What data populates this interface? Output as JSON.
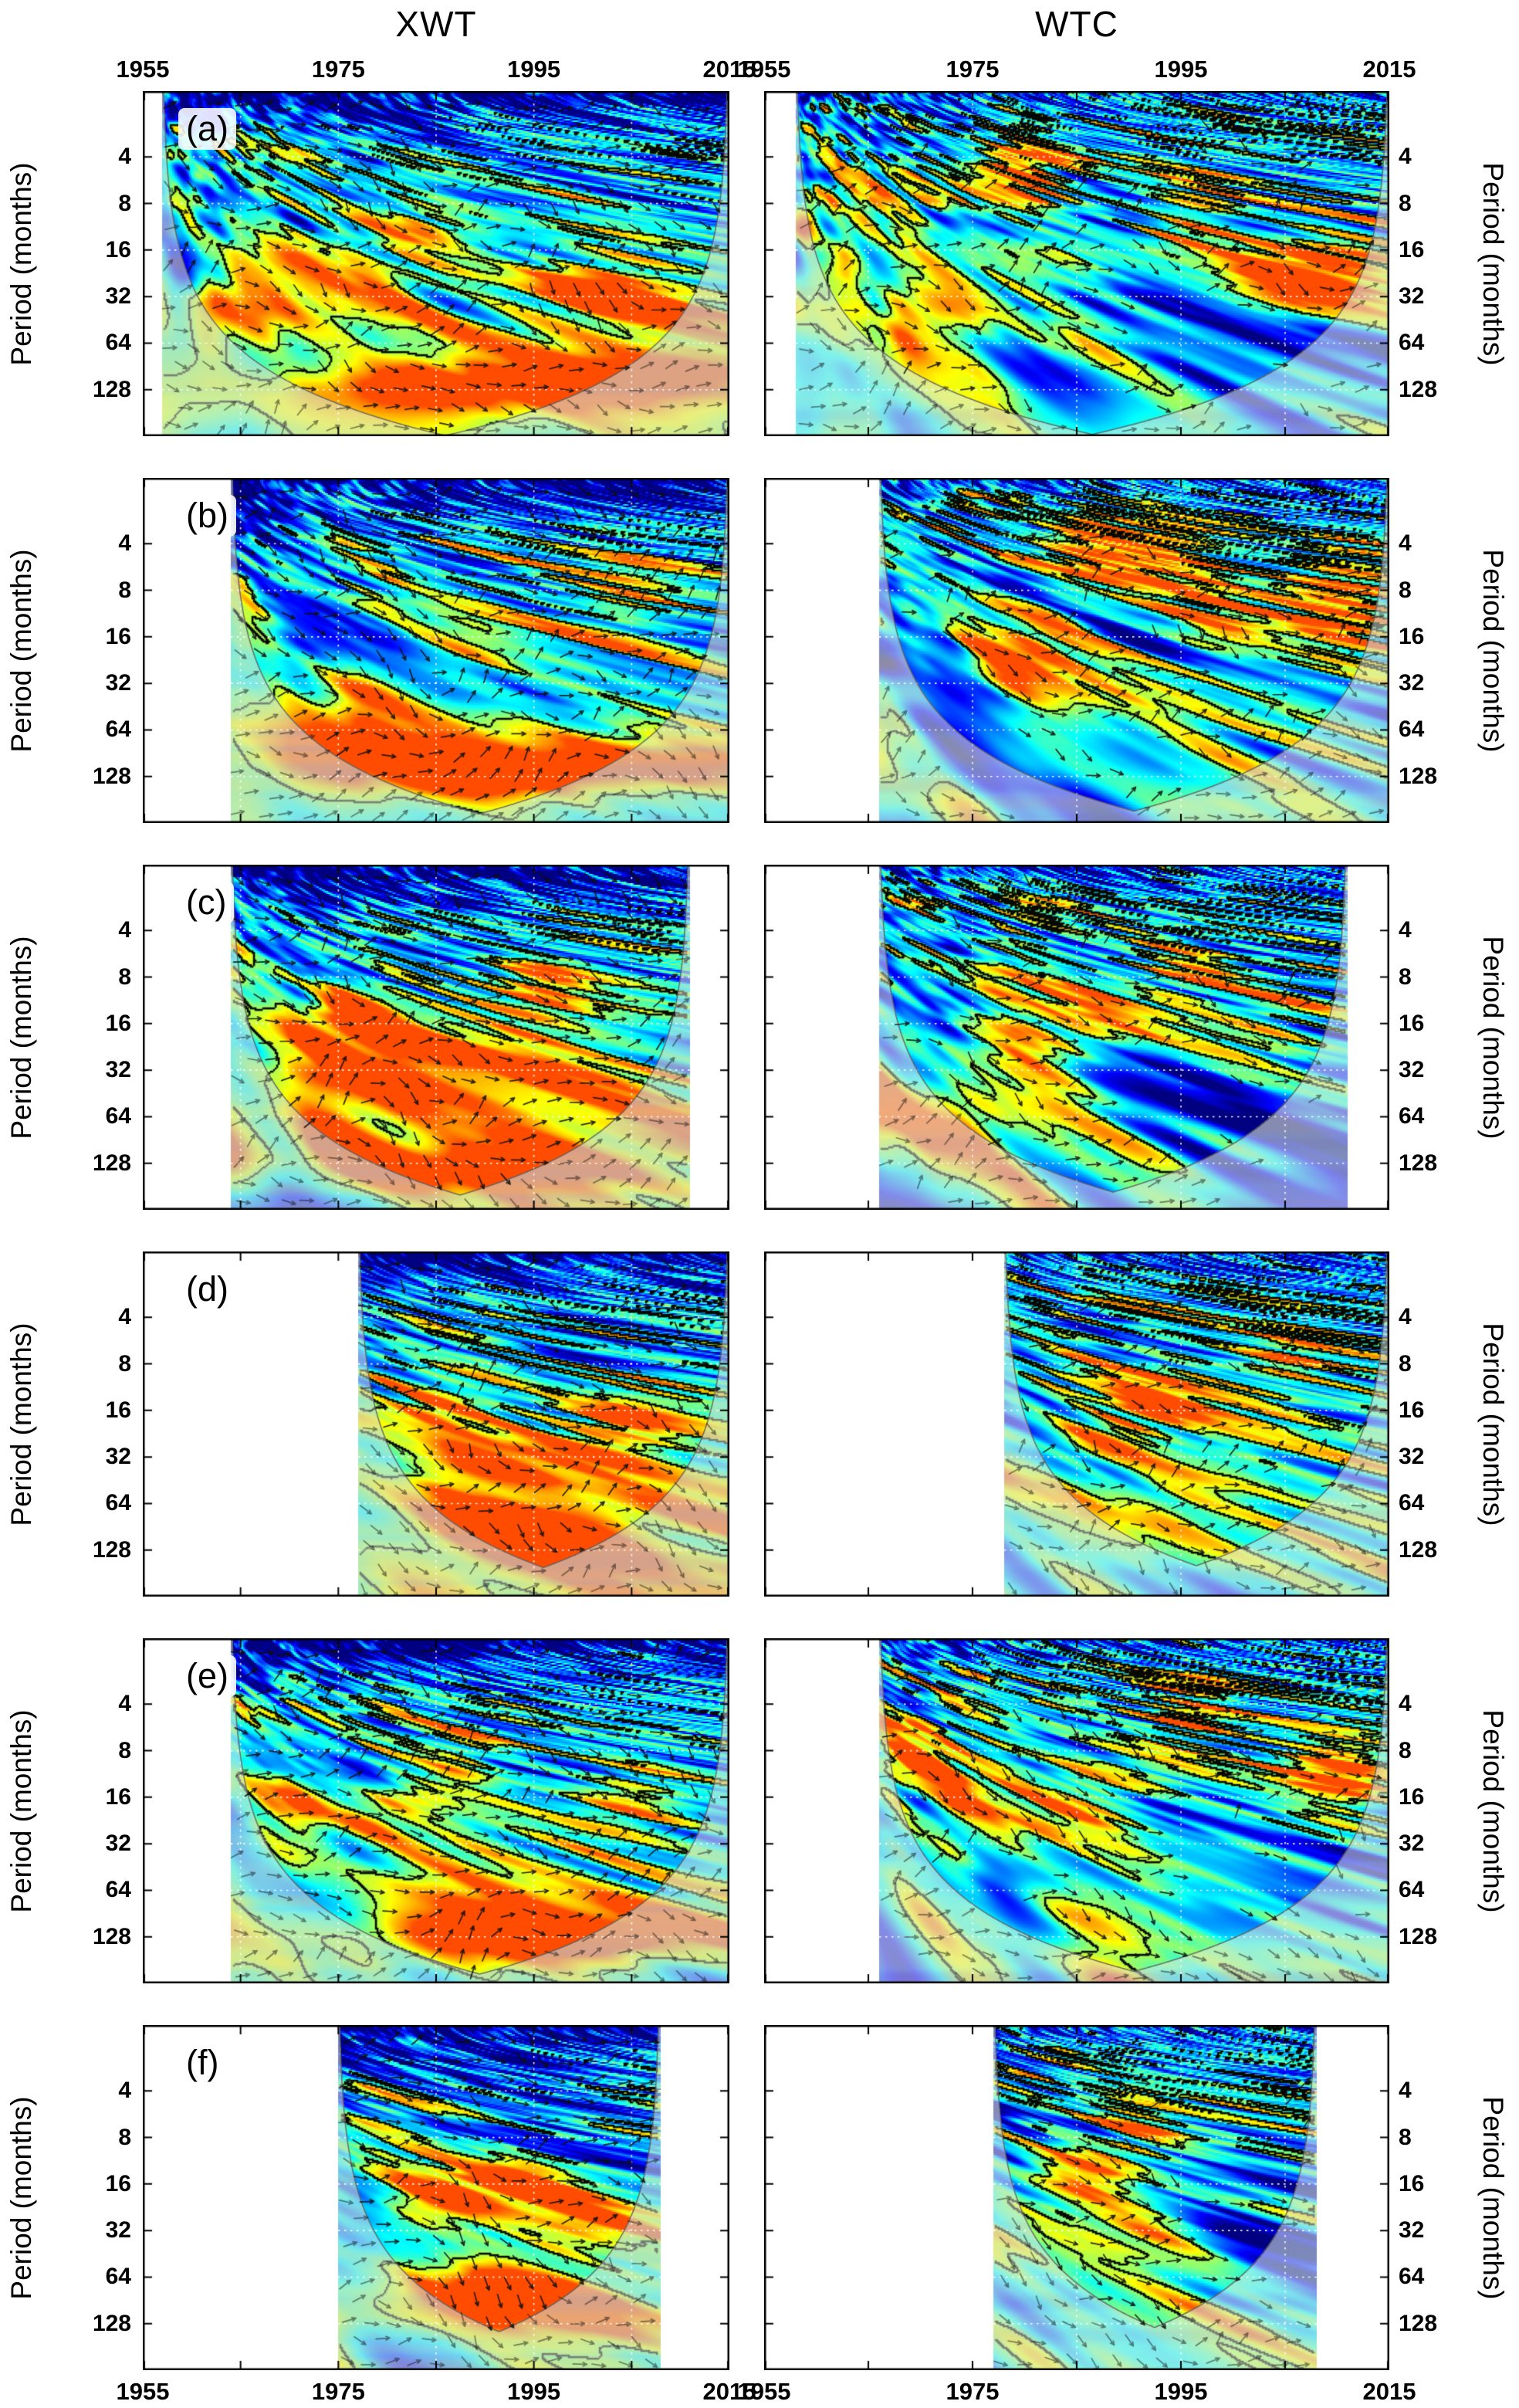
{
  "figure": {
    "column_titles": [
      "XWT",
      "WTC"
    ],
    "x_axis": {
      "tick_labels": [
        "1955",
        "1975",
        "1995",
        "2015"
      ]
    },
    "y_axis": {
      "label": "Period (months)",
      "tick_labels": [
        "4",
        "8",
        "16",
        "32",
        "64",
        "128"
      ]
    }
  },
  "chart_data": {
    "type": "heatmap",
    "subtype": "wavelet spectrogram grid: cross wavelet transform (XWT, left column) and wavelet coherence (WTC, right column), 6 dataset rows (a)-(f)",
    "colormap": "jet",
    "grid": {
      "rows": 6,
      "cols": 2
    },
    "x": {
      "unit": "year",
      "range": [
        1955,
        2015
      ],
      "label_years": [
        1955,
        1975,
        1995,
        2015
      ],
      "gridline_years": [
        1965,
        1975,
        1985,
        1995,
        2005
      ]
    },
    "y": {
      "label": "Period (months)",
      "ticks_months": [
        4,
        8,
        16,
        32,
        64,
        128
      ],
      "scale": "log2",
      "plotted_range_months": [
        1.5,
        256
      ]
    },
    "features": {
      "cone_of_influence": true,
      "phase_arrows": true,
      "significance_contours": true,
      "white_dashed_gridlines": true
    },
    "rows": [
      {
        "label": "(a)",
        "xwt": {
          "data_start_year": 1957,
          "data_end_year": 2015,
          "high_power_regions": [
            {
              "year": 1968,
              "period_months": 36,
              "dyears": 7,
              "doctaves": 0.5,
              "amp": 0.5
            },
            {
              "year": 1990,
              "period_months": 120,
              "dyears": 15,
              "doctaves": 0.4,
              "amp": 0.65
            },
            {
              "year": 2001,
              "period_months": 30,
              "dyears": 6,
              "doctaves": 0.55,
              "amp": 0.45
            },
            {
              "year": 1985,
              "period_months": 10,
              "dyears": 4,
              "doctaves": 0.6,
              "amp": 0.35
            }
          ]
        },
        "wtc": {
          "data_start_year": 1958,
          "data_end_year": 2015,
          "high_power_regions": [
            {
              "year": 1979,
              "period_months": 5.5,
              "dyears": 4,
              "doctaves": 0.7,
              "amp": 0.5
            },
            {
              "year": 1969,
              "period_months": 40,
              "dyears": 6,
              "doctaves": 0.55,
              "amp": 0.45
            },
            {
              "year": 2007,
              "period_months": 24,
              "dyears": 6,
              "doctaves": 0.6,
              "amp": 0.6
            },
            {
              "year": 1996,
              "period_months": 9,
              "dyears": 3,
              "doctaves": 0.5,
              "amp": 0.4
            }
          ]
        }
      },
      {
        "label": "(b)",
        "xwt": {
          "data_start_year": 1964,
          "data_end_year": 2015,
          "high_power_regions": [
            {
              "year": 1996,
              "period_months": 110,
              "dyears": 14,
              "doctaves": 0.4,
              "amp": 0.6
            },
            {
              "year": 1972,
              "period_months": 56,
              "dyears": 6,
              "doctaves": 0.5,
              "amp": 0.4
            },
            {
              "year": 1988,
              "period_months": 18,
              "dyears": 5,
              "doctaves": 0.5,
              "amp": 0.4
            },
            {
              "year": 2004,
              "period_months": 9,
              "dyears": 4,
              "doctaves": 0.6,
              "amp": 0.35
            },
            {
              "year": 1979,
              "period_months": 7,
              "dyears": 3,
              "doctaves": 0.6,
              "amp": 0.3
            }
          ]
        },
        "wtc": {
          "data_start_year": 1966,
          "data_end_year": 2015,
          "high_power_regions": [
            {
              "year": 1992,
              "period_months": 5,
              "dyears": 5,
              "doctaves": 0.7,
              "amp": 0.5
            },
            {
              "year": 2010,
              "period_months": 10,
              "dyears": 4,
              "doctaves": 0.8,
              "amp": 0.6
            },
            {
              "year": 1999,
              "period_months": 14,
              "dyears": 4,
              "doctaves": 0.6,
              "amp": 0.45
            },
            {
              "year": 1979,
              "period_months": 22,
              "dyears": 4,
              "doctaves": 0.5,
              "amp": 0.4
            },
            {
              "year": 1986,
              "period_months": 4,
              "dyears": 3,
              "doctaves": 0.6,
              "amp": 0.4
            }
          ]
        }
      },
      {
        "label": "(c)",
        "xwt": {
          "data_start_year": 1964,
          "data_end_year": 2011,
          "high_power_regions": [
            {
              "year": 1986,
              "period_months": 30,
              "dyears": 12,
              "doctaves": 0.8,
              "amp": 0.5
            },
            {
              "year": 1988,
              "period_months": 128,
              "dyears": 13,
              "doctaves": 0.4,
              "amp": 0.55
            },
            {
              "year": 1975,
              "period_months": 14,
              "dyears": 4,
              "doctaves": 0.5,
              "amp": 0.35
            },
            {
              "year": 1996,
              "period_months": 10,
              "dyears": 3,
              "doctaves": 0.55,
              "amp": 0.35
            }
          ]
        },
        "wtc": {
          "data_start_year": 1966,
          "data_end_year": 2011,
          "high_power_regions": [
            {
              "year": 1984,
              "period_months": 20,
              "dyears": 5,
              "doctaves": 0.6,
              "amp": 0.5
            },
            {
              "year": 1996,
              "period_months": 8,
              "dyears": 3,
              "doctaves": 0.5,
              "amp": 0.4
            },
            {
              "year": 1972,
              "period_months": 50,
              "dyears": 6,
              "doctaves": 0.5,
              "amp": 0.35
            },
            {
              "year": 2004,
              "period_months": 14,
              "dyears": 4,
              "doctaves": 0.5,
              "amp": 0.35
            }
          ]
        }
      },
      {
        "label": "(d)",
        "xwt": {
          "data_start_year": 1977,
          "data_end_year": 2015,
          "high_power_regions": [
            {
              "year": 1986,
              "period_months": 13,
              "dyears": 4,
              "doctaves": 0.55,
              "amp": 0.5
            },
            {
              "year": 1992,
              "period_months": 34,
              "dyears": 7,
              "doctaves": 0.5,
              "amp": 0.5
            },
            {
              "year": 1997,
              "period_months": 90,
              "dyears": 8,
              "doctaves": 0.5,
              "amp": 0.5
            },
            {
              "year": 2004,
              "period_months": 20,
              "dyears": 4,
              "doctaves": 0.5,
              "amp": 0.35
            }
          ]
        },
        "wtc": {
          "data_start_year": 1978,
          "data_end_year": 2015,
          "high_power_regions": [
            {
              "year": 1992,
              "period_months": 15,
              "dyears": 4,
              "doctaves": 0.55,
              "amp": 0.55
            },
            {
              "year": 1986,
              "period_months": 28,
              "dyears": 4,
              "doctaves": 0.5,
              "amp": 0.4
            },
            {
              "year": 2005,
              "period_months": 8,
              "dyears": 3,
              "doctaves": 0.5,
              "amp": 0.35
            },
            {
              "year": 1998,
              "period_months": 40,
              "dyears": 5,
              "doctaves": 0.45,
              "amp": 0.3
            }
          ]
        }
      },
      {
        "label": "(e)",
        "xwt": {
          "data_start_year": 1964,
          "data_end_year": 2015,
          "high_power_regions": [
            {
              "year": 1970,
              "period_months": 12,
              "dyears": 4,
              "doctaves": 0.6,
              "amp": 0.45
            },
            {
              "year": 1981,
              "period_months": 16,
              "dyears": 4,
              "doctaves": 0.5,
              "amp": 0.4
            },
            {
              "year": 2004,
              "period_months": 18,
              "dyears": 5,
              "doctaves": 0.6,
              "amp": 0.55
            },
            {
              "year": 1995,
              "period_months": 125,
              "dyears": 14,
              "doctaves": 0.4,
              "amp": 0.6
            },
            {
              "year": 1988,
              "period_months": 8,
              "dyears": 3,
              "doctaves": 0.5,
              "amp": 0.3
            }
          ]
        },
        "wtc": {
          "data_start_year": 1966,
          "data_end_year": 2015,
          "high_power_regions": [
            {
              "year": 1970,
              "period_months": 8,
              "dyears": 3,
              "doctaves": 0.6,
              "amp": 0.45
            },
            {
              "year": 2010,
              "period_months": 12,
              "dyears": 4,
              "doctaves": 0.7,
              "amp": 0.6
            },
            {
              "year": 1977,
              "period_months": 24,
              "dyears": 5,
              "doctaves": 0.55,
              "amp": 0.4
            },
            {
              "year": 1996,
              "period_months": 5,
              "dyears": 3,
              "doctaves": 0.6,
              "amp": 0.4
            },
            {
              "year": 1988,
              "period_months": 16,
              "dyears": 4,
              "doctaves": 0.5,
              "amp": 0.35
            }
          ]
        }
      },
      {
        "label": "(f)",
        "xwt": {
          "data_start_year": 1975,
          "data_end_year": 2008,
          "high_power_regions": [
            {
              "year": 1983,
              "period_months": 20,
              "dyears": 4,
              "doctaves": 0.55,
              "amp": 0.45
            },
            {
              "year": 1993,
              "period_months": 15,
              "dyears": 4,
              "doctaves": 0.5,
              "amp": 0.45
            },
            {
              "year": 1992,
              "period_months": 85,
              "dyears": 9,
              "doctaves": 0.45,
              "amp": 0.55
            },
            {
              "year": 1999,
              "period_months": 30,
              "dyears": 4,
              "doctaves": 0.5,
              "amp": 0.35
            }
          ]
        },
        "wtc": {
          "data_start_year": 1977,
          "data_end_year": 2008,
          "high_power_regions": [
            {
              "year": 1986,
              "period_months": 14,
              "dyears": 4,
              "doctaves": 0.5,
              "amp": 0.45
            },
            {
              "year": 1993,
              "period_months": 28,
              "dyears": 4,
              "doctaves": 0.5,
              "amp": 0.4
            },
            {
              "year": 1990,
              "period_months": 8,
              "dyears": 3,
              "doctaves": 0.5,
              "amp": 0.35
            }
          ]
        }
      }
    ]
  }
}
